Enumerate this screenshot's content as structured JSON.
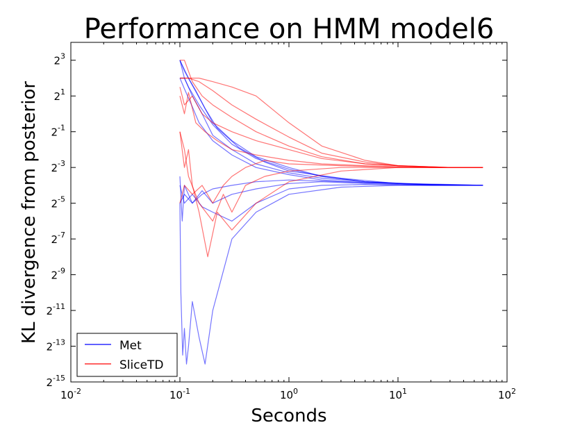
{
  "chart_data": {
    "type": "line",
    "title": "Performance on HMM model6",
    "xlabel": "Seconds",
    "ylabel": "KL divergence from posterior",
    "x_scale": "log10",
    "y_scale": "log2",
    "xlim": [
      0.01,
      100
    ],
    "ylim_exp2": [
      -15,
      4
    ],
    "x_ticks": [
      {
        "base": "10",
        "exp": "-2",
        "value": 0.01
      },
      {
        "base": "10",
        "exp": "-1",
        "value": 0.1
      },
      {
        "base": "10",
        "exp": "0",
        "value": 1
      },
      {
        "base": "10",
        "exp": "1",
        "value": 10
      },
      {
        "base": "10",
        "exp": "2",
        "value": 100
      }
    ],
    "y_ticks": [
      {
        "base": "2",
        "exp": "3",
        "value": 3
      },
      {
        "base": "2",
        "exp": "1",
        "value": 1
      },
      {
        "base": "2",
        "exp": "-1",
        "value": -1
      },
      {
        "base": "2",
        "exp": "-3",
        "value": -3
      },
      {
        "base": "2",
        "exp": "-5",
        "value": -5
      },
      {
        "base": "2",
        "exp": "-7",
        "value": -7
      },
      {
        "base": "2",
        "exp": "-9",
        "value": -9
      },
      {
        "base": "2",
        "exp": "-11",
        "value": -11
      },
      {
        "base": "2",
        "exp": "-13",
        "value": -13
      },
      {
        "base": "2",
        "exp": "-15",
        "value": -15
      }
    ],
    "legend_position": "lower-left",
    "series": [
      {
        "name": "Met",
        "color": "#0000ff",
        "runs": [
          {
            "x": [
              0.1,
              0.11,
              0.13,
              0.16,
              0.2,
              0.3,
              0.5,
              1,
              2,
              5,
              10,
              30,
              60
            ],
            "y": [
              3.0,
              2.4,
              1.6,
              0.6,
              -0.5,
              -1.5,
              -2.4,
              -3.0,
              -3.5,
              -3.8,
              -3.9,
              -4.0,
              -4.0
            ]
          },
          {
            "x": [
              0.1,
              0.11,
              0.13,
              0.16,
              0.2,
              0.3,
              0.5,
              1,
              2,
              5,
              10,
              30,
              60
            ],
            "y": [
              3.0,
              2.0,
              1.0,
              0.0,
              -1.2,
              -2.0,
              -2.8,
              -3.3,
              -3.6,
              -3.8,
              -3.9,
              -3.95,
              -4.0
            ]
          },
          {
            "x": [
              0.1,
              0.12,
              0.14,
              0.17,
              0.22,
              0.35,
              0.6,
              1,
              3,
              10,
              30,
              60
            ],
            "y": [
              3.0,
              2.0,
              1.3,
              0.3,
              -0.8,
              -1.9,
              -2.7,
              -3.2,
              -3.6,
              -3.9,
              -4.0,
              -4.0
            ]
          },
          {
            "x": [
              0.1,
              0.11,
              0.12,
              0.15,
              0.2,
              0.3,
              0.5,
              1,
              2,
              5,
              20,
              60
            ],
            "y": [
              2.0,
              2.0,
              1.5,
              0.5,
              -0.6,
              -1.7,
              -2.5,
              -3.1,
              -3.5,
              -3.8,
              -3.95,
              -4.0
            ]
          },
          {
            "x": [
              0.1,
              0.11,
              0.13,
              0.15,
              0.2,
              0.3,
              0.5,
              1,
              2,
              5,
              20,
              60
            ],
            "y": [
              2.0,
              1.4,
              0.4,
              -0.5,
              -1.5,
              -2.3,
              -3.0,
              -3.4,
              -3.7,
              -3.85,
              -3.95,
              -4.0
            ]
          },
          {
            "x": [
              0.1,
              0.105,
              0.11,
              0.13,
              0.16,
              0.2,
              0.3,
              0.5,
              1,
              3,
              10,
              30,
              60
            ],
            "y": [
              -3.5,
              -6.0,
              -4.0,
              -5.0,
              -4.5,
              -4.2,
              -4.0,
              -3.8,
              -3.7,
              -3.8,
              -3.9,
              -4.0,
              -4.0
            ]
          },
          {
            "x": [
              0.1,
              0.102,
              0.106,
              0.11,
              0.115,
              0.12,
              0.13,
              0.15,
              0.17,
              0.2,
              0.3,
              0.5,
              1,
              3,
              10,
              60
            ],
            "y": [
              -5.0,
              -10.0,
              -13.5,
              -12.0,
              -14.0,
              -13.0,
              -10.5,
              -12.5,
              -14.0,
              -11.0,
              -7.0,
              -5.5,
              -4.5,
              -4.1,
              -4.0,
              -4.0
            ]
          },
          {
            "x": [
              0.1,
              0.11,
              0.13,
              0.16,
              0.2,
              0.3,
              0.5,
              1,
              2,
              5,
              20,
              60
            ],
            "y": [
              -4.0,
              -5.0,
              -4.5,
              -5.2,
              -5.5,
              -6.0,
              -5.0,
              -4.2,
              -4.0,
              -3.95,
              -4.0,
              -4.0
            ]
          },
          {
            "x": [
              0.1,
              0.11,
              0.13,
              0.16,
              0.2,
              0.3,
              0.5,
              1,
              2,
              5,
              20,
              60
            ],
            "y": [
              -5.0,
              -4.5,
              -5.0,
              -4.3,
              -5.0,
              -4.5,
              -4.2,
              -3.9,
              -3.8,
              -3.9,
              -4.0,
              -4.0
            ]
          }
        ]
      },
      {
        "name": "SliceTD",
        "color": "#ff0000",
        "runs": [
          {
            "x": [
              0.1,
              0.12,
              0.15,
              0.2,
              0.3,
              0.5,
              1,
              2,
              5,
              10,
              30,
              60
            ],
            "y": [
              2.0,
              2.0,
              2.0,
              1.8,
              1.5,
              1.0,
              -0.5,
              -1.8,
              -2.6,
              -2.9,
              -3.0,
              -3.0
            ]
          },
          {
            "x": [
              0.1,
              0.12,
              0.15,
              0.2,
              0.3,
              0.5,
              1,
              2,
              5,
              10,
              30,
              60
            ],
            "y": [
              2.0,
              2.0,
              1.8,
              1.3,
              0.5,
              -0.3,
              -1.3,
              -2.2,
              -2.7,
              -2.9,
              -3.0,
              -3.0
            ]
          },
          {
            "x": [
              0.1,
              0.11,
              0.13,
              0.16,
              0.2,
              0.3,
              0.5,
              1,
              2,
              5,
              10,
              30,
              60
            ],
            "y": [
              3.0,
              3.0,
              1.8,
              1.0,
              0.5,
              -0.2,
              -1.0,
              -1.8,
              -2.4,
              -2.8,
              -2.9,
              -3.0,
              -3.0
            ]
          },
          {
            "x": [
              0.1,
              0.11,
              0.13,
              0.16,
              0.2,
              0.3,
              0.5,
              1,
              2,
              5,
              20,
              60
            ],
            "y": [
              1.5,
              0.5,
              1.0,
              0.0,
              -0.5,
              -1.0,
              -1.5,
              -2.0,
              -2.5,
              -2.8,
              -3.0,
              -3.0
            ]
          },
          {
            "x": [
              0.1,
              0.11,
              0.12,
              0.14,
              0.17,
              0.22,
              0.3,
              0.5,
              1,
              2,
              5,
              20,
              60
            ],
            "y": [
              1.0,
              0.0,
              1.2,
              -0.5,
              -1.0,
              -1.5,
              -2.0,
              -2.3,
              -2.6,
              -2.8,
              -2.9,
              -3.0,
              -3.0
            ]
          },
          {
            "x": [
              0.1,
              0.11,
              0.12,
              0.13,
              0.15,
              0.18,
              0.22,
              0.3,
              0.5,
              1,
              3,
              10,
              60
            ],
            "y": [
              -1.0,
              -3.0,
              -2.0,
              -4.0,
              -5.5,
              -8.0,
              -5.5,
              -6.5,
              -5.0,
              -3.8,
              -3.2,
              -3.0,
              -3.0
            ]
          },
          {
            "x": [
              0.1,
              0.11,
              0.12,
              0.15,
              0.2,
              0.25,
              0.3,
              0.4,
              0.6,
              1,
              3,
              10,
              60
            ],
            "y": [
              -1.0,
              -2.0,
              -3.5,
              -5.0,
              -6.0,
              -4.5,
              -5.5,
              -4.0,
              -3.5,
              -3.2,
              -3.0,
              -3.0,
              -3.0
            ]
          },
          {
            "x": [
              0.1,
              0.11,
              0.13,
              0.16,
              0.2,
              0.25,
              0.3,
              0.4,
              0.6,
              1,
              3,
              10,
              60
            ],
            "y": [
              -5.0,
              -4.0,
              -4.5,
              -4.0,
              -5.0,
              -4.0,
              -3.5,
              -3.0,
              -2.6,
              -2.8,
              -2.9,
              -3.0,
              -3.0
            ]
          }
        ]
      }
    ]
  }
}
